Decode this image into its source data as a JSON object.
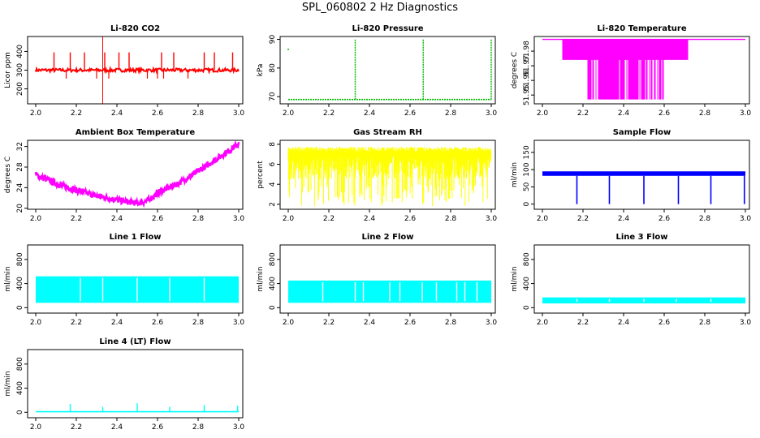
{
  "figure": {
    "title": "SPL_060802  2 Hz Diagnostics"
  },
  "chart_data": [
    {
      "id": "co2",
      "type": "line",
      "title": "Li-820 CO2",
      "ylabel": "Licor ppm",
      "color": "#ff0000",
      "xlim": [
        1.96,
        3.02
      ],
      "xticks": [
        "2.0",
        "2.2",
        "2.4",
        "2.6",
        "2.8",
        "3.0"
      ],
      "ylim": [
        120,
        480
      ],
      "yticks": [
        200,
        300,
        400
      ],
      "baseline": 300,
      "spike_x": [
        2.09,
        2.17,
        2.24,
        2.34,
        2.41,
        2.46,
        2.62,
        2.68,
        2.83,
        2.88,
        2.97
      ],
      "spike_y": [
        395,
        395,
        395,
        395,
        395,
        395,
        395,
        395,
        395,
        395,
        395
      ],
      "vline": {
        "x": 2.33,
        "ymin": 120,
        "ymax": 480
      }
    },
    {
      "id": "pressure",
      "type": "line",
      "title": "Li-820 Pressure",
      "ylabel": "kPa",
      "color": "#00bb00",
      "xlim": [
        1.96,
        3.02
      ],
      "xticks": [
        "2.0",
        "2.2",
        "2.4",
        "2.6",
        "2.8",
        "3.0"
      ],
      "ylim": [
        67.5,
        91
      ],
      "yticks": [
        70,
        80,
        90
      ],
      "baseline": 69,
      "spike_x": [
        2.33,
        2.665,
        3.0
      ],
      "spike_y": [
        90,
        90,
        90
      ],
      "outlier": {
        "x": 2.0,
        "y": 86.5
      }
    },
    {
      "id": "licor_temp",
      "type": "line",
      "title": "Li-820 Temperature",
      "ylabel": "degrees C",
      "color": "#ff00ff",
      "xlim": [
        1.96,
        3.02
      ],
      "xticks": [
        "2.0",
        "2.2",
        "2.4",
        "2.6",
        "2.8",
        "3.0"
      ],
      "ylim": [
        51.944,
        51.99
      ],
      "yticks": [
        "51.95",
        "51.96",
        "51.97",
        "51.98"
      ],
      "upper": 51.988,
      "lower": 51.947,
      "band": [
        2.1,
        2.72
      ],
      "deep": [
        2.22,
        2.6
      ]
    },
    {
      "id": "box_temp",
      "type": "line",
      "title": "Ambient Box Temperature",
      "ylabel": "degrees C",
      "color": "#ff00ff",
      "xlim": [
        1.96,
        3.02
      ],
      "xticks": [
        "2.0",
        "2.2",
        "2.4",
        "2.6",
        "2.8",
        "3.0"
      ],
      "ylim": [
        19.8,
        33.2
      ],
      "yticks": [
        20,
        24,
        28,
        32
      ],
      "x": [
        2.0,
        2.1,
        2.2,
        2.3,
        2.4,
        2.5,
        2.55,
        2.6,
        2.7,
        2.8,
        2.9,
        3.0
      ],
      "y": [
        26.5,
        24.8,
        23.5,
        22.4,
        21.6,
        21.0,
        21.4,
        23.0,
        24.8,
        27.2,
        29.8,
        32.5
      ]
    },
    {
      "id": "rh",
      "type": "line",
      "title": "Gas Stream RH",
      "ylabel": "percent",
      "color": "#ffff00",
      "xlim": [
        1.96,
        3.02
      ],
      "xticks": [
        "2.0",
        "2.2",
        "2.4",
        "2.6",
        "2.8",
        "3.0"
      ],
      "ylim": [
        1.5,
        8.4
      ],
      "yticks": [
        2,
        4,
        6,
        8
      ],
      "top": 7.5,
      "bottom_typical": 4.5,
      "bottom_min": 1.8
    },
    {
      "id": "sample_flow",
      "type": "line",
      "title": "Sample Flow",
      "ylabel": "ml/min",
      "color": "#0000ff",
      "xlim": [
        1.96,
        3.02
      ],
      "xticks": [
        "2.0",
        "2.2",
        "2.4",
        "2.6",
        "2.8",
        "3.0"
      ],
      "ylim": [
        -15,
        185
      ],
      "yticks": [
        0,
        50,
        100,
        150
      ],
      "level_top": 95,
      "level_bottom": 82,
      "dip_x": [
        2.17,
        2.33,
        2.5,
        2.67,
        2.83,
        2.995
      ],
      "dip_y": [
        0,
        0,
        0,
        0,
        0,
        0
      ]
    },
    {
      "id": "line1",
      "type": "line",
      "title": "Line 1 Flow",
      "ylabel": "ml/min",
      "color": "#00ffff",
      "xlim": [
        1.96,
        3.02
      ],
      "xticks": [
        "2.0",
        "2.2",
        "2.4",
        "2.6",
        "2.8",
        "3.0"
      ],
      "ylim": [
        -90,
        1040
      ],
      "yticks": [
        0,
        400,
        800
      ],
      "top": 520,
      "bottom": 80,
      "gaps": [
        2.22,
        2.33,
        2.5,
        2.66,
        2.83
      ]
    },
    {
      "id": "line2",
      "type": "line",
      "title": "Line 2 Flow",
      "ylabel": "ml/min",
      "color": "#00ffff",
      "xlim": [
        1.96,
        3.02
      ],
      "xticks": [
        "2.0",
        "2.2",
        "2.4",
        "2.6",
        "2.8",
        "3.0"
      ],
      "ylim": [
        -90,
        1040
      ],
      "yticks": [
        0,
        400,
        800
      ],
      "top": 450,
      "bottom": 80,
      "gaps": [
        2.17,
        2.33,
        2.37,
        2.5,
        2.55,
        2.66,
        2.73,
        2.83,
        2.87,
        2.93
      ]
    },
    {
      "id": "line3",
      "type": "line",
      "title": "Line 3 Flow",
      "ylabel": "ml/min",
      "color": "#00ffff",
      "xlim": [
        1.96,
        3.02
      ],
      "xticks": [
        "2.0",
        "2.2",
        "2.4",
        "2.6",
        "2.8",
        "3.0"
      ],
      "ylim": [
        -90,
        1040
      ],
      "yticks": [
        0,
        400,
        800
      ],
      "top": 170,
      "bottom": 70,
      "gaps": [
        2.17,
        2.33,
        2.5,
        2.66,
        2.83
      ]
    },
    {
      "id": "line4",
      "type": "line",
      "title": "Line 4 (LT) Flow",
      "ylabel": "ml/min",
      "color": "#00ffff",
      "xlim": [
        1.96,
        3.02
      ],
      "xticks": [
        "2.0",
        "2.2",
        "2.4",
        "2.6",
        "2.8",
        "3.0"
      ],
      "ylim": [
        -90,
        1040
      ],
      "yticks": [
        0,
        400,
        800
      ],
      "baseline": 10,
      "spike_x": [
        2.17,
        2.33,
        2.5,
        2.66,
        2.83,
        2.995
      ],
      "spike_y": [
        140,
        90,
        150,
        90,
        120,
        110
      ]
    }
  ]
}
